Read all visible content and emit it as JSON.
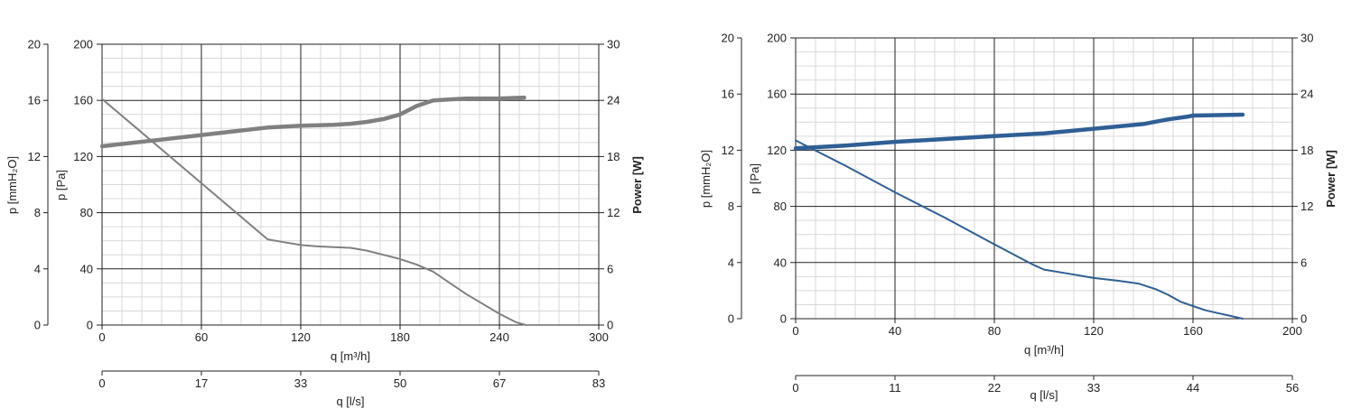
{
  "chart_data": [
    {
      "type": "line",
      "xlabel": "q [m³/h]",
      "xlabel2": "q [l/s]",
      "ylabel": "p [Pa]",
      "ylabel_left2": "p [mmH₂O]",
      "ylabel_right": "Power [W]",
      "xlim": [
        0,
        300
      ],
      "ylim": [
        0,
        200
      ],
      "ylim_right": [
        0,
        30
      ],
      "x_ticks": [
        "0",
        "60",
        "120",
        "180",
        "240",
        "300"
      ],
      "x2_ticks": [
        "0",
        "17",
        "33",
        "50",
        "67",
        "83"
      ],
      "y_ticks": [
        "0",
        "40",
        "80",
        "120",
        "160",
        "200"
      ],
      "y_left2_ticks": [
        "0",
        "4",
        "8",
        "12",
        "16",
        "20"
      ],
      "y_right_ticks": [
        "0",
        "6",
        "12",
        "18",
        "24",
        "30"
      ],
      "grid": true,
      "color": "#808080",
      "series": [
        {
          "axis": "left",
          "x": [
            0,
            20,
            40,
            60,
            80,
            95,
            100,
            110,
            120,
            130,
            140,
            150,
            160,
            170,
            180,
            190,
            200,
            210,
            220,
            230,
            240,
            250,
            256
          ],
          "values": [
            161,
            141,
            121,
            101,
            81,
            66,
            61,
            59,
            57,
            56,
            55.5,
            55,
            53,
            50,
            47,
            43,
            38,
            30,
            22,
            15,
            8,
            2,
            0
          ]
        },
        {
          "axis": "right",
          "x": [
            0,
            30,
            60,
            90,
            100,
            120,
            140,
            150,
            160,
            170,
            176,
            180,
            190,
            200,
            220,
            240,
            255
          ],
          "values": [
            19.1,
            19.7,
            20.3,
            20.9,
            21.1,
            21.3,
            21.4,
            21.5,
            21.7,
            22.0,
            22.3,
            22.5,
            23.4,
            24.0,
            24.2,
            24.2,
            24.3
          ]
        }
      ]
    },
    {
      "type": "line",
      "xlabel": "q [m³/h]",
      "xlabel2": "q [l/s]",
      "ylabel": "p [Pa]",
      "ylabel_left2": "p [mmH₂O]",
      "ylabel_right": "Power [W]",
      "xlim": [
        0,
        200
      ],
      "ylim": [
        0,
        200
      ],
      "ylim_right": [
        0,
        30
      ],
      "x_ticks": [
        "0",
        "40",
        "80",
        "120",
        "160",
        "200"
      ],
      "x2_ticks": [
        "0",
        "11",
        "22",
        "33",
        "44",
        "56"
      ],
      "y_ticks": [
        "0",
        "40",
        "80",
        "120",
        "160",
        "200"
      ],
      "y_left2_ticks": [
        "0",
        "4",
        "8",
        "12",
        "16",
        "20"
      ],
      "y_right_ticks": [
        "0",
        "6",
        "12",
        "18",
        "24",
        "30"
      ],
      "grid": true,
      "color": "#2f5f95",
      "series": [
        {
          "axis": "left",
          "x": [
            0,
            20,
            40,
            60,
            80,
            95,
            100,
            110,
            120,
            130,
            138,
            145,
            150,
            155,
            160,
            165,
            170,
            175,
            180
          ],
          "values": [
            127,
            109,
            90,
            72,
            53,
            39,
            35,
            32,
            29,
            27,
            25,
            21,
            17,
            12,
            9,
            6,
            4,
            2,
            0
          ]
        },
        {
          "axis": "right",
          "x": [
            0,
            20,
            40,
            60,
            80,
            100,
            120,
            140,
            150,
            158,
            160,
            170,
            180
          ],
          "values": [
            18.2,
            18.5,
            18.9,
            19.2,
            19.5,
            19.8,
            20.3,
            20.8,
            21.3,
            21.6,
            21.7,
            21.75,
            21.8
          ]
        }
      ]
    }
  ]
}
